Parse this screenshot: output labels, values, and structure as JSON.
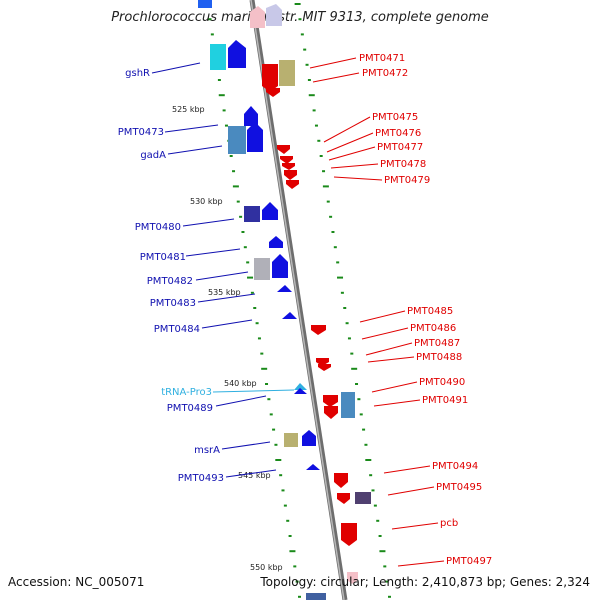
{
  "title": "Prochlorococcus marinus str. MIT 9313, complete genome",
  "footer": {
    "accession": "Accession: NC_005071",
    "topology": "Topology: circular; Length: 2,410,873 bp; Genes: 2,324"
  },
  "colors": {
    "forward_label": "#1010b0",
    "reverse_label": "#e00000",
    "trna_label": "#30b0e0",
    "backbone": "#8a8a8a",
    "tick": "#1a8a1a"
  },
  "kbp_marks": [
    "525 kbp",
    "530 kbp",
    "535 kbp",
    "540 kbp",
    "545 kbp",
    "550 kbp"
  ],
  "left_labels": [
    "gshR",
    "PMT0473",
    "gadA",
    "PMT0480",
    "PMT0481",
    "PMT0482",
    "PMT0483",
    "PMT0484",
    "tRNA-Pro3",
    "PMT0489",
    "msrA",
    "PMT0493"
  ],
  "right_labels": [
    "PMT0471",
    "PMT0472",
    "PMT0475",
    "PMT0476",
    "PMT0477",
    "PMT0478",
    "PMT0479",
    "PMT0485",
    "PMT0486",
    "PMT0487",
    "PMT0488",
    "PMT0490",
    "PMT0491",
    "PMT0494",
    "PMT0495",
    "pcb",
    "PMT0497"
  ]
}
